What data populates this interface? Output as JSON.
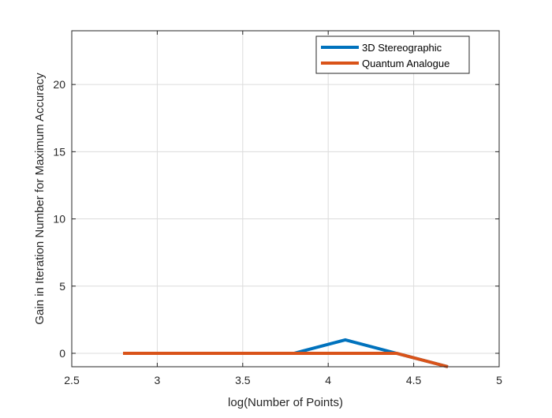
{
  "chart_data": {
    "type": "line",
    "title": "",
    "xlabel": "log(Number of Points)",
    "ylabel": "Gain in Iteration Number for Maximum Accuracy",
    "xlim": [
      2.5,
      5
    ],
    "ylim": [
      -1,
      24
    ],
    "xticks": [
      2.5,
      3,
      3.5,
      4,
      4.5,
      5
    ],
    "yticks": [
      0,
      5,
      10,
      15,
      20
    ],
    "xtick_labels": [
      "2.5",
      "3",
      "3.5",
      "4",
      "4.5",
      "5"
    ],
    "ytick_labels": [
      "0",
      "5",
      "10",
      "15",
      "20"
    ],
    "grid": true,
    "legend_position": "top-right",
    "series": [
      {
        "name": "3D Stereographic",
        "color": "#0072BD",
        "x": [
          2.8,
          3.1,
          3.4,
          3.8,
          4.1,
          4.4,
          4.7
        ],
        "y": [
          0,
          0,
          0,
          0,
          1,
          0,
          -1
        ]
      },
      {
        "name": "Quantum Analogue",
        "color": "#D95319",
        "x": [
          2.8,
          3.1,
          3.4,
          3.8,
          4.1,
          4.4,
          4.7
        ],
        "y": [
          0,
          0,
          0,
          0,
          0,
          0,
          -1
        ]
      }
    ]
  }
}
